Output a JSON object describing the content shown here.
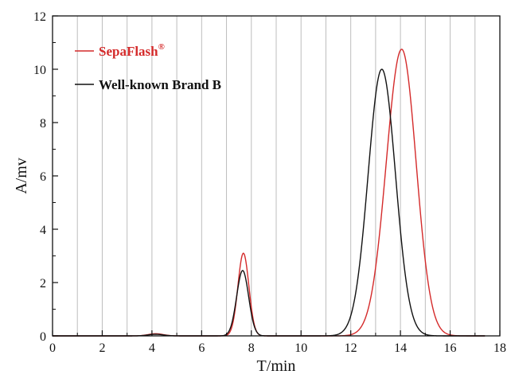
{
  "chart_data": {
    "type": "line",
    "title": "",
    "xlabel": "T/min",
    "ylabel": "A/mv",
    "xlim": [
      0,
      18
    ],
    "ylim": [
      0,
      12
    ],
    "grid": "vertical",
    "x_ticks": [
      0,
      2,
      4,
      6,
      8,
      10,
      12,
      14,
      16,
      18
    ],
    "y_ticks": [
      0,
      2,
      4,
      6,
      8,
      10,
      12
    ],
    "x_tick_labels": [
      "0",
      "2",
      "4",
      "6",
      "8",
      "10",
      "12",
      "14",
      "16",
      "18"
    ],
    "y_tick_labels": [
      "0",
      "2",
      "4",
      "6",
      "8",
      "10",
      "12"
    ],
    "legend_position": "top-left",
    "series": [
      {
        "name": "SepaFlash",
        "superscript": "®",
        "color": "#d42a2a",
        "peaks": [
          {
            "center": 4.15,
            "height": 0.08,
            "width": 0.3
          },
          {
            "center": 7.68,
            "height": 3.1,
            "width": 0.22
          },
          {
            "center": 14.05,
            "height": 10.75,
            "width_left": 0.62,
            "width_right": 0.58
          }
        ],
        "x_end": 17.4
      },
      {
        "name": "Well-known Brand B",
        "color": "#111111",
        "peaks": [
          {
            "center": 4.15,
            "height": 0.06,
            "width": 0.3
          },
          {
            "center": 7.65,
            "height": 2.45,
            "width": 0.24
          },
          {
            "center": 13.25,
            "height": 10.0,
            "width_left": 0.55,
            "width_right": 0.55
          }
        ],
        "x_end": 17.4
      }
    ]
  }
}
